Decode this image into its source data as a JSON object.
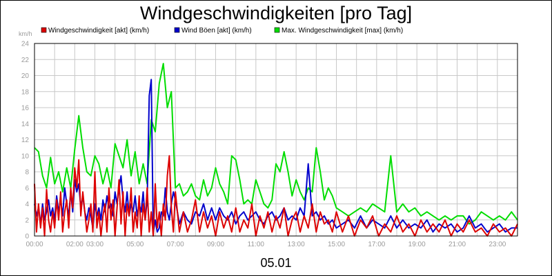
{
  "chart_data": {
    "type": "line",
    "title": "Windgeschwindigkeiten [pro Tag]",
    "ylabel": "km/h",
    "xlabel": "05.01",
    "ylim": [
      0,
      24
    ],
    "xlim": [
      0,
      24
    ],
    "y_ticks": [
      0,
      2,
      4,
      6,
      8,
      10,
      12,
      14,
      16,
      18,
      20,
      22,
      24
    ],
    "x_ticks": [
      {
        "label": "00:00",
        "x": 0
      },
      {
        "label": "02:00",
        "x": 2
      },
      {
        "label": "03:00",
        "x": 3
      },
      {
        "label": "05:00",
        "x": 5
      },
      {
        "label": "07:00",
        "x": 7
      },
      {
        "label": "09:00",
        "x": 9
      },
      {
        "label": "11:00",
        "x": 11
      },
      {
        "label": "13:00",
        "x": 13
      },
      {
        "label": "15:00",
        "x": 15
      },
      {
        "label": "17:00",
        "x": 17
      },
      {
        "label": "19:00",
        "x": 19
      },
      {
        "label": "21:00",
        "x": 21
      },
      {
        "label": "23:00",
        "x": 23
      }
    ],
    "grid": true,
    "legend_position": "top",
    "series": [
      {
        "name": "Windgeschwindigkeit [akt] (km/h)",
        "color": "#dd0000",
        "x": [
          0.0,
          0.1,
          0.2,
          0.3,
          0.4,
          0.5,
          0.6,
          0.7,
          0.8,
          0.9,
          1.0,
          1.1,
          1.2,
          1.3,
          1.4,
          1.5,
          1.6,
          1.7,
          1.8,
          1.9,
          2.0,
          2.1,
          2.2,
          2.3,
          2.4,
          2.5,
          2.6,
          2.7,
          2.8,
          2.9,
          3.0,
          3.1,
          3.2,
          3.3,
          3.4,
          3.5,
          3.6,
          3.7,
          3.8,
          3.9,
          4.0,
          4.1,
          4.2,
          4.3,
          4.4,
          4.5,
          4.6,
          4.7,
          4.8,
          4.9,
          5.0,
          5.1,
          5.2,
          5.3,
          5.4,
          5.5,
          5.6,
          5.7,
          5.8,
          5.9,
          6.0,
          6.1,
          6.2,
          6.3,
          6.4,
          6.5,
          6.6,
          6.7,
          6.8,
          6.9,
          7.0,
          7.2,
          7.4,
          7.6,
          7.8,
          8.0,
          8.2,
          8.4,
          8.6,
          8.8,
          9.0,
          9.2,
          9.4,
          9.6,
          9.8,
          10.0,
          10.2,
          10.4,
          10.6,
          10.8,
          11.0,
          11.2,
          11.4,
          11.6,
          11.8,
          12.0,
          12.2,
          12.4,
          12.6,
          12.8,
          13.0,
          13.2,
          13.4,
          13.6,
          13.8,
          14.0,
          14.2,
          14.4,
          14.6,
          14.8,
          15.0,
          15.3,
          15.6,
          15.9,
          16.2,
          16.5,
          16.8,
          17.1,
          17.4,
          17.7,
          18.0,
          18.3,
          18.6,
          18.9,
          19.2,
          19.5,
          19.8,
          20.1,
          20.4,
          20.7,
          21.0,
          21.3,
          21.6,
          21.9,
          22.2,
          22.5,
          22.8,
          23.1,
          23.4,
          23.7,
          24.0
        ],
        "values": [
          6.5,
          0.5,
          4.0,
          1.0,
          3.5,
          0.0,
          5.8,
          2.0,
          0.5,
          3.0,
          1.0,
          4.5,
          2.0,
          5.5,
          0.5,
          3.0,
          4.5,
          1.0,
          6.0,
          3.5,
          8.5,
          6.0,
          9.5,
          2.5,
          5.5,
          3.0,
          0.5,
          2.0,
          4.0,
          0.5,
          8.0,
          1.0,
          3.0,
          0.0,
          2.5,
          4.0,
          0.5,
          6.0,
          2.0,
          4.5,
          0.0,
          3.5,
          7.0,
          1.5,
          5.5,
          0.0,
          4.0,
          2.5,
          6.0,
          0.5,
          3.0,
          1.0,
          5.0,
          0.0,
          4.0,
          2.0,
          6.0,
          0.5,
          3.0,
          0.0,
          6.5,
          1.0,
          3.0,
          0.0,
          4.0,
          2.0,
          7.5,
          10.0,
          3.5,
          0.5,
          5.5,
          0.5,
          3.0,
          0.5,
          2.0,
          4.5,
          0.5,
          3.0,
          1.0,
          2.5,
          0.0,
          3.0,
          1.0,
          2.5,
          0.5,
          3.5,
          0.5,
          2.0,
          1.0,
          4.0,
          0.0,
          2.5,
          1.0,
          3.0,
          0.5,
          2.5,
          1.0,
          3.5,
          0.0,
          2.0,
          3.0,
          0.5,
          2.5,
          1.0,
          4.0,
          0.5,
          3.0,
          1.5,
          2.0,
          0.5,
          3.0,
          0.5,
          2.5,
          0.0,
          2.0,
          1.0,
          2.5,
          0.0,
          1.5,
          0.5,
          2.5,
          0.5,
          1.5,
          0.0,
          2.0,
          0.5,
          1.5,
          0.5,
          2.0,
          0.0,
          1.5,
          0.5,
          2.0,
          0.5,
          1.0,
          0.0,
          1.5,
          0.5,
          1.0,
          0.0,
          1.5
        ]
      },
      {
        "name": "Wind Böen [akt] (km/h)",
        "color": "#0000cc",
        "x": [
          0.0,
          0.1,
          0.2,
          0.3,
          0.4,
          0.5,
          0.6,
          0.7,
          0.8,
          0.9,
          1.0,
          1.1,
          1.2,
          1.3,
          1.4,
          1.5,
          1.6,
          1.7,
          1.8,
          1.9,
          2.0,
          2.1,
          2.2,
          2.3,
          2.4,
          2.5,
          2.6,
          2.7,
          2.8,
          2.9,
          3.0,
          3.1,
          3.2,
          3.3,
          3.4,
          3.5,
          3.6,
          3.7,
          3.8,
          3.9,
          4.0,
          4.1,
          4.2,
          4.3,
          4.4,
          4.5,
          4.6,
          4.7,
          4.8,
          4.9,
          5.0,
          5.1,
          5.2,
          5.3,
          5.4,
          5.5,
          5.6,
          5.7,
          5.8,
          5.9,
          6.0,
          6.1,
          6.2,
          6.3,
          6.4,
          6.5,
          6.6,
          6.7,
          6.8,
          6.9,
          7.0,
          7.2,
          7.4,
          7.6,
          7.8,
          8.0,
          8.2,
          8.4,
          8.6,
          8.8,
          9.0,
          9.2,
          9.4,
          9.6,
          9.8,
          10.0,
          10.2,
          10.4,
          10.6,
          10.8,
          11.0,
          11.2,
          11.4,
          11.6,
          11.8,
          12.0,
          12.2,
          12.4,
          12.6,
          12.8,
          13.0,
          13.2,
          13.4,
          13.6,
          13.8,
          14.0,
          14.2,
          14.4,
          14.6,
          14.8,
          15.0,
          15.3,
          15.6,
          15.9,
          16.2,
          16.5,
          16.8,
          17.1,
          17.4,
          17.7,
          18.0,
          18.3,
          18.6,
          18.9,
          19.2,
          19.5,
          19.8,
          20.1,
          20.4,
          20.7,
          21.0,
          21.3,
          21.6,
          21.9,
          22.2,
          22.5,
          22.8,
          23.1,
          23.4,
          23.7,
          24.0
        ],
        "values": [
          4.0,
          2.5,
          3.5,
          1.5,
          4.0,
          2.0,
          3.0,
          4.5,
          2.5,
          3.5,
          2.0,
          5.0,
          3.0,
          4.5,
          2.5,
          6.0,
          4.0,
          2.5,
          5.5,
          3.0,
          7.0,
          5.5,
          6.5,
          3.5,
          5.0,
          3.0,
          2.0,
          3.5,
          2.5,
          1.0,
          4.0,
          2.5,
          3.5,
          2.0,
          4.5,
          3.0,
          5.0,
          3.5,
          4.0,
          2.5,
          5.5,
          4.0,
          6.0,
          7.5,
          4.5,
          3.0,
          5.5,
          2.5,
          4.0,
          3.0,
          5.0,
          2.5,
          4.0,
          3.0,
          5.5,
          2.0,
          4.5,
          17.5,
          19.5,
          0.5,
          2.0,
          0.5,
          1.0,
          3.0,
          2.5,
          6.0,
          3.0,
          2.0,
          4.0,
          5.5,
          4.5,
          1.5,
          3.0,
          2.0,
          1.5,
          3.0,
          2.5,
          4.0,
          2.0,
          3.5,
          2.0,
          3.5,
          2.5,
          2.0,
          3.0,
          1.5,
          2.5,
          3.0,
          2.0,
          2.5,
          3.0,
          2.0,
          1.5,
          2.5,
          3.0,
          2.0,
          2.5,
          3.5,
          2.0,
          2.5,
          2.0,
          3.5,
          2.5,
          9.0,
          2.5,
          3.0,
          2.0,
          2.5,
          1.5,
          2.0,
          1.0,
          1.5,
          2.0,
          1.0,
          2.5,
          1.0,
          2.0,
          1.5,
          1.0,
          2.5,
          1.0,
          2.0,
          1.0,
          1.5,
          1.0,
          2.0,
          0.5,
          1.5,
          1.0,
          1.5,
          0.5,
          1.0,
          2.5,
          1.0,
          1.5,
          0.5,
          1.0,
          1.5,
          0.5,
          1.0,
          1.0
        ]
      },
      {
        "name": "Max. Windgeschwindigkeit [max] (km/h)",
        "color": "#00dd00",
        "x": [
          0.0,
          0.2,
          0.4,
          0.6,
          0.8,
          1.0,
          1.2,
          1.4,
          1.6,
          1.8,
          2.0,
          2.2,
          2.4,
          2.6,
          2.8,
          3.0,
          3.2,
          3.4,
          3.6,
          3.8,
          4.0,
          4.2,
          4.4,
          4.6,
          4.8,
          5.0,
          5.2,
          5.4,
          5.6,
          5.8,
          6.0,
          6.2,
          6.4,
          6.6,
          6.8,
          7.0,
          7.2,
          7.4,
          7.6,
          7.8,
          8.0,
          8.2,
          8.4,
          8.6,
          8.8,
          9.0,
          9.2,
          9.4,
          9.6,
          9.8,
          10.0,
          10.2,
          10.4,
          10.6,
          10.8,
          11.0,
          11.2,
          11.4,
          11.6,
          11.8,
          12.0,
          12.2,
          12.4,
          12.6,
          12.8,
          13.0,
          13.2,
          13.4,
          13.6,
          13.8,
          14.0,
          14.2,
          14.4,
          14.6,
          14.8,
          15.0,
          15.3,
          15.6,
          15.9,
          16.2,
          16.5,
          16.8,
          17.1,
          17.4,
          17.7,
          18.0,
          18.3,
          18.6,
          18.9,
          19.2,
          19.5,
          19.8,
          20.1,
          20.4,
          20.7,
          21.0,
          21.3,
          21.6,
          21.9,
          22.2,
          22.5,
          22.8,
          23.1,
          23.4,
          23.7,
          24.0
        ],
        "values": [
          11.0,
          10.5,
          7.5,
          6.0,
          9.8,
          6.5,
          8.0,
          5.5,
          8.5,
          6.0,
          10.8,
          15.0,
          11.0,
          8.0,
          7.5,
          10.0,
          9.0,
          6.5,
          8.5,
          6.0,
          11.5,
          10.0,
          8.5,
          12.0,
          7.5,
          10.5,
          6.5,
          9.0,
          6.5,
          14.5,
          13.0,
          19.0,
          21.5,
          16.0,
          18.0,
          6.0,
          6.5,
          5.0,
          5.5,
          6.5,
          5.0,
          4.5,
          7.0,
          5.0,
          6.0,
          8.5,
          6.5,
          5.5,
          4.0,
          10.0,
          9.5,
          7.0,
          4.0,
          4.5,
          4.0,
          7.0,
          5.5,
          4.0,
          3.5,
          4.5,
          9.0,
          8.0,
          10.5,
          8.0,
          5.0,
          7.0,
          5.5,
          4.5,
          6.0,
          5.5,
          11.0,
          8.0,
          4.5,
          6.0,
          5.0,
          3.5,
          3.0,
          2.5,
          3.0,
          3.5,
          3.0,
          4.0,
          3.5,
          3.0,
          10.0,
          3.0,
          4.0,
          3.0,
          3.5,
          2.5,
          3.0,
          2.5,
          2.0,
          2.5,
          2.0,
          2.5,
          2.5,
          1.5,
          2.0,
          3.0,
          2.5,
          2.0,
          2.5,
          2.0,
          3.0,
          2.0
        ]
      }
    ]
  }
}
